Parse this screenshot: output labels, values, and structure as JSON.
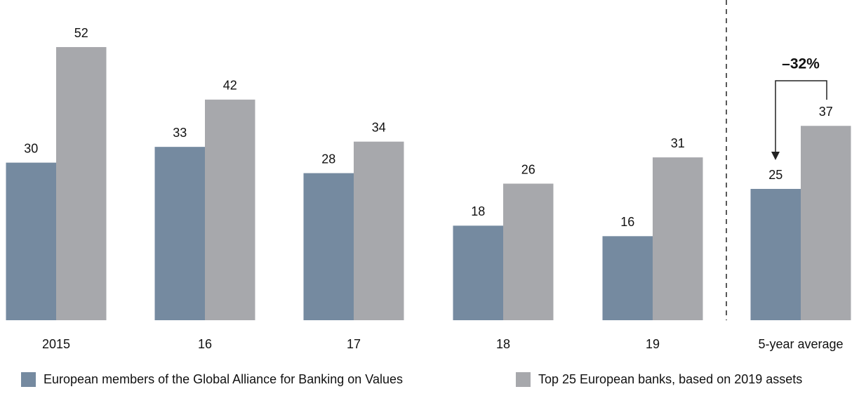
{
  "chart_data": {
    "type": "bar",
    "categories": [
      "2015",
      "16",
      "17",
      "18",
      "19",
      "5-year average"
    ],
    "series": [
      {
        "name": "European members of the Global Alliance for Banking on Values",
        "color": "#758aa0",
        "values": [
          30,
          33,
          28,
          18,
          16,
          25
        ]
      },
      {
        "name": "Top 25 European banks, based on 2019 assets",
        "color": "#a7a8ac",
        "values": [
          52,
          42,
          34,
          26,
          31,
          37
        ]
      }
    ],
    "annotation": "–32%"
  }
}
